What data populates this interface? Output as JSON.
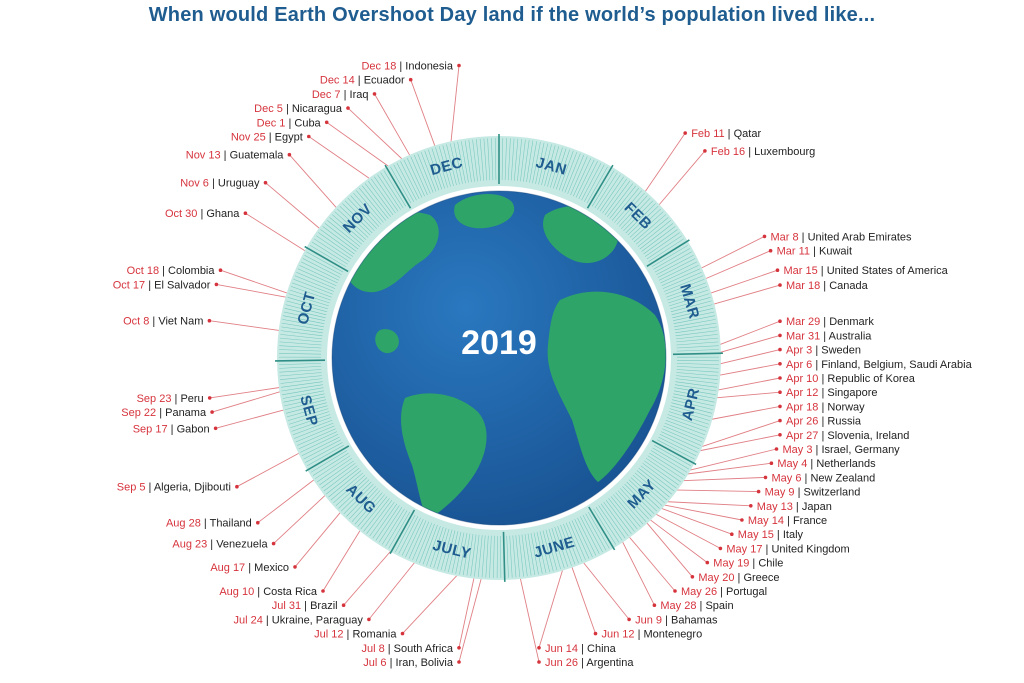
{
  "title": "When would Earth Overshoot Day land if the world’s population lived like...",
  "center_label": "2019",
  "months": [
    "JAN",
    "FEB",
    "MAR",
    "APR",
    "MAY",
    "JUNE",
    "JULY",
    "AUG",
    "SEP",
    "OCT",
    "NOV",
    "DEC"
  ],
  "colors": {
    "title": "#1f5c8f",
    "date": "#d6343d",
    "leader": "#e07f85",
    "ring": "#c6e9e4",
    "ring_tick": "#5bbbb0",
    "ocean": "#1d62a8",
    "land": "#2ea468"
  },
  "entries": [
    {
      "date": "Feb 11",
      "country": "Qatar",
      "day": 42,
      "side": "R"
    },
    {
      "date": "Feb 16",
      "country": "Luxembourg",
      "day": 47,
      "side": "R"
    },
    {
      "date": "Mar 8",
      "country": "United Arab Emirates",
      "day": 67,
      "side": "R"
    },
    {
      "date": "Mar 11",
      "country": "Kuwait",
      "day": 70,
      "side": "R"
    },
    {
      "date": "Mar 15",
      "country": "United States of America",
      "day": 74,
      "side": "R"
    },
    {
      "date": "Mar 18",
      "country": "Canada",
      "day": 77,
      "side": "R"
    },
    {
      "date": "Mar 29",
      "country": "Denmark",
      "day": 88,
      "side": "R"
    },
    {
      "date": "Mar 31",
      "country": "Australia",
      "day": 90,
      "side": "R"
    },
    {
      "date": "Apr 3",
      "country": "Sweden",
      "day": 93,
      "side": "R"
    },
    {
      "date": "Apr 6",
      "country": "Finland, Belgium, Saudi Arabia",
      "day": 96,
      "side": "R"
    },
    {
      "date": "Apr 10",
      "country": "Republic of Korea",
      "day": 100,
      "side": "R"
    },
    {
      "date": "Apr 12",
      "country": "Singapore",
      "day": 102,
      "side": "R"
    },
    {
      "date": "Apr 18",
      "country": "Norway",
      "day": 108,
      "side": "R"
    },
    {
      "date": "Apr 26",
      "country": "Russia",
      "day": 116,
      "side": "R"
    },
    {
      "date": "Apr 27",
      "country": "Slovenia, Ireland",
      "day": 117,
      "side": "R"
    },
    {
      "date": "May 3",
      "country": "Israel, Germany",
      "day": 123,
      "side": "R"
    },
    {
      "date": "May 4",
      "country": "Netherlands",
      "day": 124,
      "side": "R"
    },
    {
      "date": "May 6",
      "country": "New Zealand",
      "day": 126,
      "side": "R"
    },
    {
      "date": "May 9",
      "country": "Switzerland",
      "day": 129,
      "side": "R"
    },
    {
      "date": "May 13",
      "country": "Japan",
      "day": 133,
      "side": "R"
    },
    {
      "date": "May 14",
      "country": "France",
      "day": 134,
      "side": "R"
    },
    {
      "date": "May 15",
      "country": "Italy",
      "day": 135,
      "side": "R"
    },
    {
      "date": "May 17",
      "country": "United Kingdom",
      "day": 137,
      "side": "R"
    },
    {
      "date": "May 19",
      "country": "Chile",
      "day": 139,
      "side": "R"
    },
    {
      "date": "May 20",
      "country": "Greece",
      "day": 140,
      "side": "R"
    },
    {
      "date": "May 26",
      "country": "Portugal",
      "day": 146,
      "side": "R"
    },
    {
      "date": "May 28",
      "country": "Spain",
      "day": 148,
      "side": "R"
    },
    {
      "date": "Jun 9",
      "country": "Bahamas",
      "day": 160,
      "side": "R"
    },
    {
      "date": "Jun 12",
      "country": "Montenegro",
      "day": 163,
      "side": "R"
    },
    {
      "date": "Jun 14",
      "country": "China",
      "day": 165,
      "side": "R"
    },
    {
      "date": "Jun 26",
      "country": "Argentina",
      "day": 177,
      "side": "R"
    },
    {
      "date": "Jul 6",
      "country": "Iran, Bolivia",
      "day": 187,
      "side": "L"
    },
    {
      "date": "Jul 8",
      "country": "South Africa",
      "day": 189,
      "side": "L"
    },
    {
      "date": "Jul 12",
      "country": "Romania",
      "day": 193,
      "side": "L"
    },
    {
      "date": "Jul 24",
      "country": "Ukraine, Paraguay",
      "day": 205,
      "side": "L"
    },
    {
      "date": "Jul 31",
      "country": "Brazil",
      "day": 212,
      "side": "L"
    },
    {
      "date": "Aug 10",
      "country": "Costa Rica",
      "day": 222,
      "side": "L"
    },
    {
      "date": "Aug 17",
      "country": "Mexico",
      "day": 229,
      "side": "L"
    },
    {
      "date": "Aug 23",
      "country": "Venezuela",
      "day": 235,
      "side": "L"
    },
    {
      "date": "Aug 28",
      "country": "Thailand",
      "day": 240,
      "side": "L"
    },
    {
      "date": "Sep  5",
      "country": "Algeria, Djibouti",
      "day": 248,
      "side": "L"
    },
    {
      "date": "Sep 17",
      "country": "Gabon",
      "day": 260,
      "side": "L"
    },
    {
      "date": "Sep 22",
      "country": "Panama",
      "day": 265,
      "side": "L"
    },
    {
      "date": "Sep 23",
      "country": "Peru",
      "day": 266,
      "side": "L"
    },
    {
      "date": "Oct 8",
      "country": "Viet Nam",
      "day": 281,
      "side": "L"
    },
    {
      "date": "Oct 17",
      "country": "El Salvador",
      "day": 290,
      "side": "L"
    },
    {
      "date": "Oct 18",
      "country": "Colombia",
      "day": 291,
      "side": "L"
    },
    {
      "date": "Oct 30",
      "country": "Ghana",
      "day": 303,
      "side": "L"
    },
    {
      "date": "Nov 6",
      "country": "Uruguay",
      "day": 310,
      "side": "L"
    },
    {
      "date": "Nov 13",
      "country": "Guatemala",
      "day": 317,
      "side": "L"
    },
    {
      "date": "Nov 25",
      "country": "Egypt",
      "day": 329,
      "side": "L"
    },
    {
      "date": "Dec 1",
      "country": "Cuba",
      "day": 335,
      "side": "L"
    },
    {
      "date": "Dec 5",
      "country": "Nicaragua",
      "day": 339,
      "side": "L"
    },
    {
      "date": "Dec 7",
      "country": "Iraq",
      "day": 341,
      "side": "L"
    },
    {
      "date": "Dec 14",
      "country": "Ecuador",
      "day": 348,
      "side": "L"
    },
    {
      "date": "Dec 18",
      "country": "Indonesia",
      "day": 352,
      "side": "R"
    }
  ]
}
